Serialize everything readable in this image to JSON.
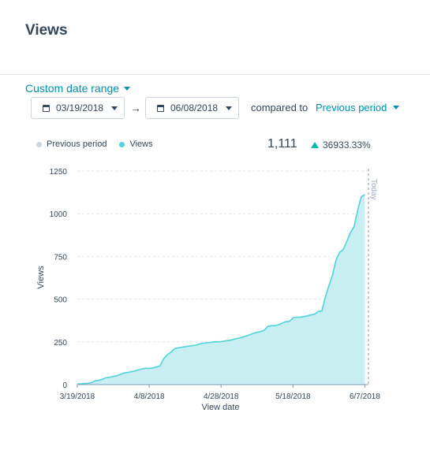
{
  "page": {
    "title": "Views"
  },
  "controls": {
    "range_label": "Custom date range",
    "start_date": "03/19/2018",
    "arrow": "→",
    "end_date": "06/08/2018",
    "compared_label": "compared to",
    "compare_option": "Previous period"
  },
  "legend": [
    {
      "label": "Previous period",
      "color": "#cbd6e2"
    },
    {
      "label": "Views",
      "color": "#51d3d9"
    }
  ],
  "summary": {
    "total": "1,111",
    "change": "36933.33%",
    "change_color": "#00bda5"
  },
  "chart_data": {
    "type": "area",
    "xlabel": "View date",
    "ylabel": "Views",
    "ylim": [
      0,
      1250
    ],
    "yticks": [
      0,
      250,
      500,
      750,
      1000,
      1250
    ],
    "xlim": [
      "2018-03-19",
      "2018-06-08"
    ],
    "xticks": [
      {
        "date": "2018-03-19",
        "label": "3/19/2018"
      },
      {
        "date": "2018-04-08",
        "label": "4/8/2018"
      },
      {
        "date": "2018-04-28",
        "label": "4/28/2018"
      },
      {
        "date": "2018-05-18",
        "label": "5/18/2018"
      },
      {
        "date": "2018-06-07",
        "label": "6/7/2018"
      }
    ],
    "marker": {
      "date": "2018-06-08",
      "label": "Today"
    },
    "grid": true,
    "series": [
      {
        "name": "Views",
        "color": "#51d3d9",
        "points": [
          [
            "2018-03-19",
            3
          ],
          [
            "2018-03-20",
            5
          ],
          [
            "2018-03-21",
            6
          ],
          [
            "2018-03-22",
            8
          ],
          [
            "2018-03-23",
            12
          ],
          [
            "2018-03-24",
            22
          ],
          [
            "2018-03-25",
            25
          ],
          [
            "2018-03-26",
            32
          ],
          [
            "2018-03-27",
            40
          ],
          [
            "2018-03-28",
            43
          ],
          [
            "2018-03-29",
            48
          ],
          [
            "2018-03-30",
            52
          ],
          [
            "2018-03-31",
            60
          ],
          [
            "2018-04-01",
            68
          ],
          [
            "2018-04-02",
            71
          ],
          [
            "2018-04-03",
            75
          ],
          [
            "2018-04-04",
            80
          ],
          [
            "2018-04-05",
            86
          ],
          [
            "2018-04-06",
            92
          ],
          [
            "2018-04-07",
            96
          ],
          [
            "2018-04-08",
            95
          ],
          [
            "2018-04-09",
            98
          ],
          [
            "2018-04-10",
            103
          ],
          [
            "2018-04-11",
            110
          ],
          [
            "2018-04-12",
            150
          ],
          [
            "2018-04-13",
            175
          ],
          [
            "2018-04-14",
            188
          ],
          [
            "2018-04-15",
            210
          ],
          [
            "2018-04-16",
            215
          ],
          [
            "2018-04-17",
            218
          ],
          [
            "2018-04-18",
            222
          ],
          [
            "2018-04-19",
            225
          ],
          [
            "2018-04-20",
            228
          ],
          [
            "2018-04-21",
            230
          ],
          [
            "2018-04-22",
            238
          ],
          [
            "2018-04-23",
            242
          ],
          [
            "2018-04-24",
            245
          ],
          [
            "2018-04-25",
            247
          ],
          [
            "2018-04-26",
            250
          ],
          [
            "2018-04-27",
            250
          ],
          [
            "2018-04-28",
            252
          ],
          [
            "2018-04-29",
            255
          ],
          [
            "2018-04-30",
            258
          ],
          [
            "2018-05-01",
            262
          ],
          [
            "2018-05-02",
            268
          ],
          [
            "2018-05-03",
            272
          ],
          [
            "2018-05-04",
            278
          ],
          [
            "2018-05-05",
            285
          ],
          [
            "2018-05-06",
            292
          ],
          [
            "2018-05-07",
            300
          ],
          [
            "2018-05-08",
            306
          ],
          [
            "2018-05-09",
            310
          ],
          [
            "2018-05-10",
            318
          ],
          [
            "2018-05-11",
            340
          ],
          [
            "2018-05-12",
            345
          ],
          [
            "2018-05-13",
            345
          ],
          [
            "2018-05-14",
            350
          ],
          [
            "2018-05-15",
            360
          ],
          [
            "2018-05-16",
            368
          ],
          [
            "2018-05-17",
            370
          ],
          [
            "2018-05-18",
            390
          ],
          [
            "2018-05-19",
            395
          ],
          [
            "2018-05-20",
            395
          ],
          [
            "2018-05-21",
            398
          ],
          [
            "2018-05-22",
            402
          ],
          [
            "2018-05-23",
            408
          ],
          [
            "2018-05-24",
            412
          ],
          [
            "2018-05-25",
            428
          ],
          [
            "2018-05-26",
            430
          ],
          [
            "2018-05-27",
            510
          ],
          [
            "2018-05-28",
            580
          ],
          [
            "2018-05-29",
            640
          ],
          [
            "2018-05-30",
            730
          ],
          [
            "2018-05-31",
            775
          ],
          [
            "2018-06-01",
            790
          ],
          [
            "2018-06-02",
            840
          ],
          [
            "2018-06-03",
            890
          ],
          [
            "2018-06-04",
            925
          ],
          [
            "2018-06-05",
            1020
          ],
          [
            "2018-06-06",
            1100
          ],
          [
            "2018-06-07",
            1111
          ]
        ]
      }
    ]
  }
}
